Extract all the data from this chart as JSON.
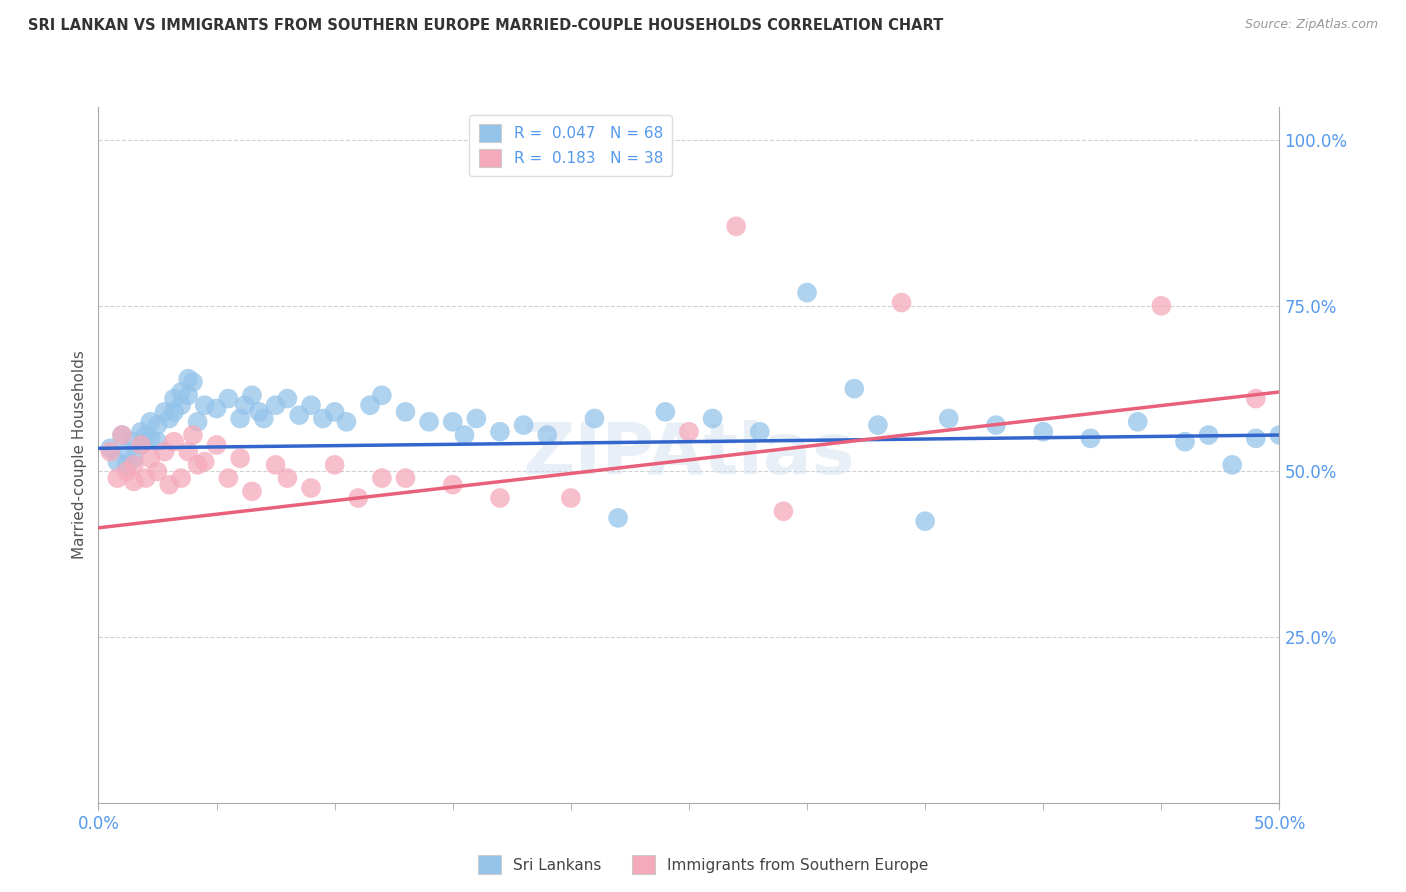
{
  "title": "SRI LANKAN VS IMMIGRANTS FROM SOUTHERN EUROPE MARRIED-COUPLE HOUSEHOLDS CORRELATION CHART",
  "source": "Source: ZipAtlas.com",
  "ylabel": "Married-couple Households",
  "xlim": [
    0.0,
    0.5
  ],
  "ylim": [
    0.0,
    1.05
  ],
  "yticks": [
    0.25,
    0.5,
    0.75,
    1.0
  ],
  "ytick_labels": [
    "25.0%",
    "50.0%",
    "75.0%",
    "100.0%"
  ],
  "blue_color": "#94C4EA",
  "pink_color": "#F5AABB",
  "blue_line_color": "#3366CC",
  "pink_line_color": "#E8607A",
  "tick_label_color": "#5599EE",
  "blue_points": [
    [
      0.005,
      0.535
    ],
    [
      0.008,
      0.515
    ],
    [
      0.01,
      0.555
    ],
    [
      0.012,
      0.53
    ],
    [
      0.012,
      0.51
    ],
    [
      0.015,
      0.545
    ],
    [
      0.015,
      0.52
    ],
    [
      0.018,
      0.56
    ],
    [
      0.018,
      0.54
    ],
    [
      0.02,
      0.555
    ],
    [
      0.022,
      0.575
    ],
    [
      0.022,
      0.55
    ],
    [
      0.025,
      0.57
    ],
    [
      0.025,
      0.545
    ],
    [
      0.028,
      0.59
    ],
    [
      0.03,
      0.58
    ],
    [
      0.032,
      0.61
    ],
    [
      0.032,
      0.59
    ],
    [
      0.035,
      0.62
    ],
    [
      0.035,
      0.6
    ],
    [
      0.038,
      0.64
    ],
    [
      0.038,
      0.615
    ],
    [
      0.04,
      0.635
    ],
    [
      0.042,
      0.575
    ],
    [
      0.045,
      0.6
    ],
    [
      0.05,
      0.595
    ],
    [
      0.055,
      0.61
    ],
    [
      0.06,
      0.58
    ],
    [
      0.062,
      0.6
    ],
    [
      0.065,
      0.615
    ],
    [
      0.068,
      0.59
    ],
    [
      0.07,
      0.58
    ],
    [
      0.075,
      0.6
    ],
    [
      0.08,
      0.61
    ],
    [
      0.085,
      0.585
    ],
    [
      0.09,
      0.6
    ],
    [
      0.095,
      0.58
    ],
    [
      0.1,
      0.59
    ],
    [
      0.105,
      0.575
    ],
    [
      0.115,
      0.6
    ],
    [
      0.12,
      0.615
    ],
    [
      0.13,
      0.59
    ],
    [
      0.14,
      0.575
    ],
    [
      0.15,
      0.575
    ],
    [
      0.155,
      0.555
    ],
    [
      0.16,
      0.58
    ],
    [
      0.17,
      0.56
    ],
    [
      0.18,
      0.57
    ],
    [
      0.19,
      0.555
    ],
    [
      0.21,
      0.58
    ],
    [
      0.22,
      0.43
    ],
    [
      0.24,
      0.59
    ],
    [
      0.26,
      0.58
    ],
    [
      0.28,
      0.56
    ],
    [
      0.3,
      0.77
    ],
    [
      0.32,
      0.625
    ],
    [
      0.33,
      0.57
    ],
    [
      0.35,
      0.425
    ],
    [
      0.36,
      0.58
    ],
    [
      0.38,
      0.57
    ],
    [
      0.4,
      0.56
    ],
    [
      0.42,
      0.55
    ],
    [
      0.44,
      0.575
    ],
    [
      0.46,
      0.545
    ],
    [
      0.47,
      0.555
    ],
    [
      0.48,
      0.51
    ],
    [
      0.49,
      0.55
    ],
    [
      0.5,
      0.555
    ]
  ],
  "pink_points": [
    [
      0.005,
      0.53
    ],
    [
      0.008,
      0.49
    ],
    [
      0.01,
      0.555
    ],
    [
      0.012,
      0.5
    ],
    [
      0.015,
      0.485
    ],
    [
      0.015,
      0.51
    ],
    [
      0.018,
      0.54
    ],
    [
      0.02,
      0.49
    ],
    [
      0.022,
      0.52
    ],
    [
      0.025,
      0.5
    ],
    [
      0.028,
      0.53
    ],
    [
      0.03,
      0.48
    ],
    [
      0.032,
      0.545
    ],
    [
      0.035,
      0.49
    ],
    [
      0.038,
      0.53
    ],
    [
      0.04,
      0.555
    ],
    [
      0.042,
      0.51
    ],
    [
      0.045,
      0.515
    ],
    [
      0.05,
      0.54
    ],
    [
      0.055,
      0.49
    ],
    [
      0.06,
      0.52
    ],
    [
      0.065,
      0.47
    ],
    [
      0.075,
      0.51
    ],
    [
      0.08,
      0.49
    ],
    [
      0.09,
      0.475
    ],
    [
      0.1,
      0.51
    ],
    [
      0.11,
      0.46
    ],
    [
      0.12,
      0.49
    ],
    [
      0.13,
      0.49
    ],
    [
      0.15,
      0.48
    ],
    [
      0.17,
      0.46
    ],
    [
      0.2,
      0.46
    ],
    [
      0.25,
      0.56
    ],
    [
      0.27,
      0.87
    ],
    [
      0.29,
      0.44
    ],
    [
      0.34,
      0.755
    ],
    [
      0.45,
      0.75
    ],
    [
      0.49,
      0.61
    ]
  ]
}
